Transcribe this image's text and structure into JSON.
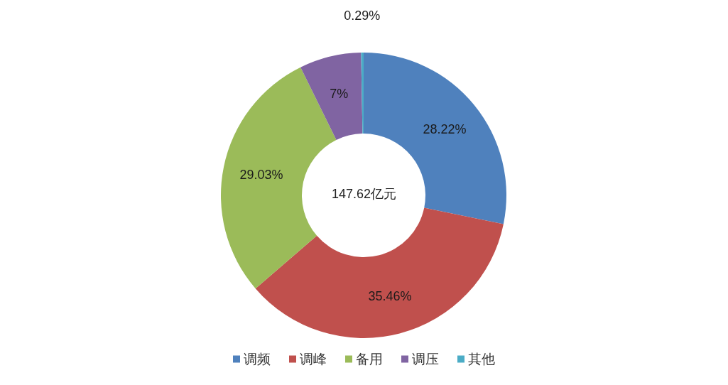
{
  "chart_data": {
    "type": "donut",
    "categories": [
      "调频",
      "调峰",
      "备用",
      "调压",
      "其他"
    ],
    "values": [
      28.22,
      35.46,
      29.03,
      7,
      0.29
    ],
    "colors": [
      "#4f81bd",
      "#c0504d",
      "#9bbb59",
      "#8064a2",
      "#4bacc6"
    ],
    "value_labels": [
      "28.22%",
      "35.46%",
      "29.03%",
      "7%",
      "0.29%"
    ],
    "annotations": [
      "147.62亿元"
    ],
    "legend": "bottom"
  }
}
